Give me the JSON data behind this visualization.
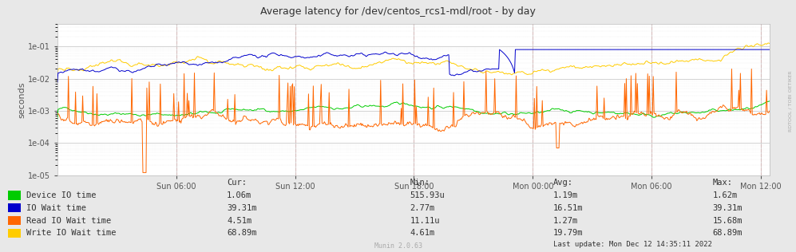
{
  "title": "Average latency for /dev/centos_rcs1-mdl/root - by day",
  "ylabel": "seconds",
  "x_tick_labels": [
    "Sun 06:00",
    "Sun 12:00",
    "Sun 18:00",
    "Mon 00:00",
    "Mon 06:00",
    "Mon 12:00"
  ],
  "background_color": "#e8e8e8",
  "plot_bg_color": "#ffffff",
  "colors": {
    "device_io": "#00cc00",
    "io_wait": "#0000cc",
    "read_io_wait": "#ff6600",
    "write_io_wait": "#ffcc00"
  },
  "legend_labels": [
    "Device IO time",
    "IO Wait time",
    "Read IO Wait time",
    "Write IO Wait time"
  ],
  "stats_header": [
    "Cur:",
    "Min:",
    "Avg:",
    "Max:"
  ],
  "stats": [
    [
      "1.06m",
      "515.93u",
      "1.19m",
      "1.62m"
    ],
    [
      "39.31m",
      "2.77m",
      "16.51m",
      "39.31m"
    ],
    [
      "4.51m",
      "11.11u",
      "1.27m",
      "15.68m"
    ],
    [
      "68.89m",
      "4.61m",
      "19.79m",
      "68.89m"
    ]
  ],
  "last_update": "Last update: Mon Dec 12 14:35:11 2022",
  "munin_version": "Munin 2.0.63",
  "right_label": "RDTOOL / TOBI OETIKER",
  "seed": 42,
  "n_points": 900
}
